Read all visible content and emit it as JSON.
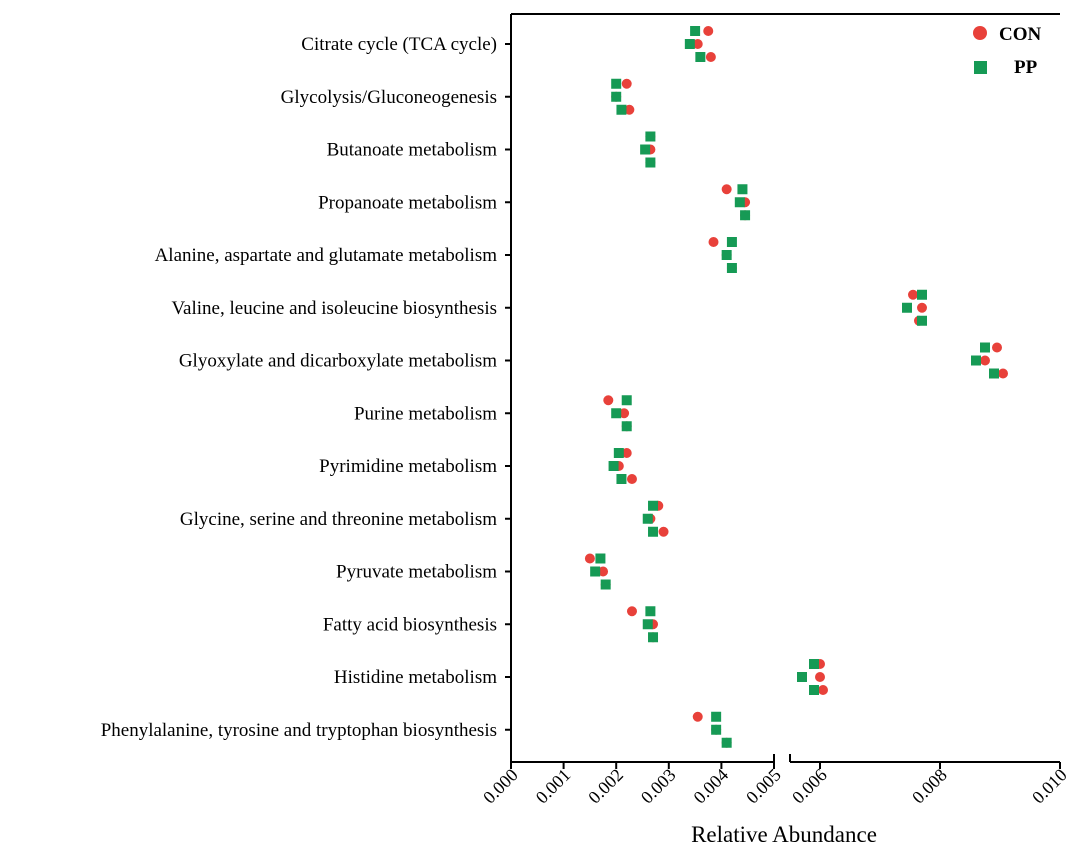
{
  "chart_data": {
    "type": "scatter",
    "xlabel": "Relative Abundance",
    "ylabel": "",
    "xlim": [
      0,
      0.01
    ],
    "axis_break": [
      0.005,
      0.0055
    ],
    "x_ticks_left": [
      "0.000",
      "0.001",
      "0.002",
      "0.003",
      "0.004",
      "0.005"
    ],
    "x_ticks_right": [
      "0.006",
      "0.008",
      "0.010"
    ],
    "x_tick_values_left": [
      0,
      0.001,
      0.002,
      0.003,
      0.004,
      0.005
    ],
    "x_tick_values_right": [
      0.006,
      0.008,
      0.01
    ],
    "grid": false,
    "legend_position": "top-right",
    "colors": {
      "CON": "#e8413a",
      "PP": "#169a55"
    },
    "categories": [
      "Citrate cycle (TCA cycle)",
      "Glycolysis/Gluconeogenesis",
      "Butanoate metabolism",
      "Propanoate metabolism",
      "Alanine, aspartate and glutamate metabolism",
      "Valine, leucine and isoleucine biosynthesis",
      "Glyoxylate and dicarboxylate metabolism",
      "Purine metabolism",
      "Pyrimidine metabolism",
      "Glycine, serine and threonine metabolism",
      "Pyruvate metabolism",
      "Fatty acid biosynthesis",
      "Histidine metabolism",
      "Phenylalanine, tyrosine and tryptophan biosynthesis"
    ],
    "series": [
      {
        "name": "CON",
        "marker": "circle",
        "values": [
          [
            0.00375,
            0.00355,
            0.0038
          ],
          [
            0.0022,
            0.002,
            0.00225
          ],
          [
            0.00265,
            0.00265,
            0.00265
          ],
          [
            0.0041,
            0.00445,
            0.00445
          ],
          [
            0.00385,
            0.0041,
            0.0042
          ],
          [
            0.00755,
            0.0077,
            0.00765
          ],
          [
            0.00895,
            0.00875,
            0.00905
          ],
          [
            0.00185,
            0.00215,
            0.0022
          ],
          [
            0.0022,
            0.00205,
            0.0023
          ],
          [
            0.0028,
            0.00265,
            0.0029
          ],
          [
            0.0015,
            0.00175,
            0.0018
          ],
          [
            0.0023,
            0.0027,
            0.0027
          ],
          [
            0.006,
            0.006,
            0.00605
          ],
          [
            0.00355,
            0.0039,
            0.0041
          ]
        ]
      },
      {
        "name": "PP",
        "marker": "square",
        "values": [
          [
            0.0035,
            0.0034,
            0.0036
          ],
          [
            0.002,
            0.002,
            0.0021
          ],
          [
            0.00265,
            0.00255,
            0.00265
          ],
          [
            0.0044,
            0.00435,
            0.00445
          ],
          [
            0.0042,
            0.0041,
            0.0042
          ],
          [
            0.0077,
            0.00745,
            0.0077
          ],
          [
            0.00875,
            0.0086,
            0.0089
          ],
          [
            0.0022,
            0.002,
            0.0022
          ],
          [
            0.00205,
            0.00195,
            0.0021
          ],
          [
            0.0027,
            0.0026,
            0.0027
          ],
          [
            0.0017,
            0.0016,
            0.0018
          ],
          [
            0.00265,
            0.0026,
            0.0027
          ],
          [
            0.0059,
            0.0057,
            0.0059
          ],
          [
            0.0039,
            0.0039,
            0.0041
          ]
        ]
      }
    ]
  }
}
